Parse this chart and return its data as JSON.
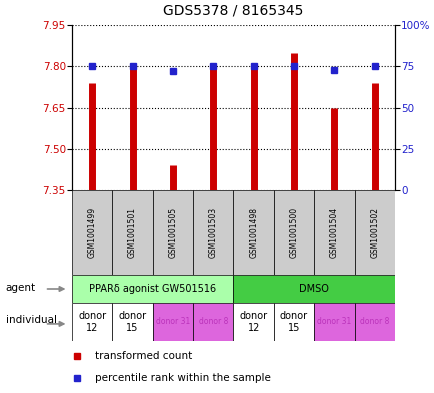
{
  "title": "GDS5378 / 8165345",
  "samples": [
    "GSM1001499",
    "GSM1001501",
    "GSM1001505",
    "GSM1001503",
    "GSM1001498",
    "GSM1001500",
    "GSM1001504",
    "GSM1001502"
  ],
  "transformed_counts": [
    7.74,
    7.81,
    7.44,
    7.81,
    7.8,
    7.85,
    7.65,
    7.74
  ],
  "percentile_ranks": [
    75,
    75,
    72,
    75,
    75,
    73,
    75
  ],
  "percentile_ranks_all": [
    75,
    75,
    72,
    75,
    75,
    75,
    73,
    75
  ],
  "ylim_left": [
    7.35,
    7.95
  ],
  "yticks_left": [
    7.35,
    7.5,
    7.65,
    7.8,
    7.95
  ],
  "yticks_right": [
    0,
    25,
    50,
    75,
    100
  ],
  "ytick_labels_right": [
    "0",
    "25",
    "50",
    "75",
    "100%"
  ],
  "bar_color": "#cc0000",
  "dot_color": "#2222cc",
  "agent_groups": [
    {
      "label": "PPARδ agonist GW501516",
      "start": 0,
      "end": 4,
      "color": "#aaffaa"
    },
    {
      "label": "DMSO",
      "start": 4,
      "end": 8,
      "color": "#44cc44"
    }
  ],
  "individual_groups": [
    {
      "label": "donor\n12",
      "start": 0,
      "end": 1,
      "color": "#ffffff",
      "small": false
    },
    {
      "label": "donor\n15",
      "start": 1,
      "end": 2,
      "color": "#ffffff",
      "small": false
    },
    {
      "label": "donor 31",
      "start": 2,
      "end": 3,
      "color": "#dd66dd",
      "small": true
    },
    {
      "label": "donor 8",
      "start": 3,
      "end": 4,
      "color": "#dd66dd",
      "small": true
    },
    {
      "label": "donor\n12",
      "start": 4,
      "end": 5,
      "color": "#ffffff",
      "small": false
    },
    {
      "label": "donor\n15",
      "start": 5,
      "end": 6,
      "color": "#ffffff",
      "small": false
    },
    {
      "label": "donor 31",
      "start": 6,
      "end": 7,
      "color": "#dd66dd",
      "small": true
    },
    {
      "label": "donor 8",
      "start": 7,
      "end": 8,
      "color": "#dd66dd",
      "small": true
    }
  ],
  "legend_labels": [
    "transformed count",
    "percentile rank within the sample"
  ],
  "legend_colors": [
    "#cc0000",
    "#2222cc"
  ],
  "ylabel_left_color": "#cc0000",
  "ylabel_right_color": "#2222cc"
}
